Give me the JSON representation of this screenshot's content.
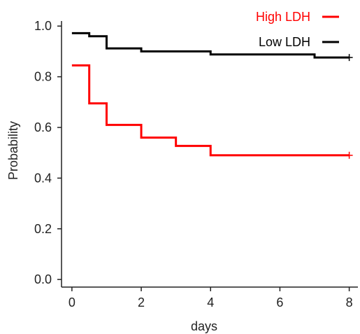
{
  "chart_data": {
    "type": "line",
    "xlabel": "days",
    "ylabel": "Probability",
    "xlim": [
      -0.3,
      8.25
    ],
    "ylim": [
      -0.03,
      1.02
    ],
    "xticks": [
      0,
      2,
      4,
      6,
      8
    ],
    "yticks": [
      0.0,
      0.2,
      0.4,
      0.6,
      0.8,
      1.0
    ],
    "xtick_labels": [
      "0",
      "2",
      "4",
      "6",
      "8"
    ],
    "ytick_labels": [
      "0.0",
      "0.2",
      "0.4",
      "0.6",
      "0.8",
      "1.0"
    ],
    "step": true,
    "grid": false,
    "legend_position": "top-right",
    "series": [
      {
        "name": "High LDH",
        "color": "#ff0000",
        "points": [
          [
            0,
            0.845
          ],
          [
            0.5,
            0.695
          ],
          [
            1,
            0.61
          ],
          [
            2,
            0.56
          ],
          [
            3,
            0.527
          ],
          [
            4,
            0.49
          ],
          [
            8,
            0.49
          ]
        ],
        "censored": [
          [
            8,
            0.49
          ]
        ]
      },
      {
        "name": "Low LDH",
        "color": "#000000",
        "points": [
          [
            0,
            0.972
          ],
          [
            0.5,
            0.96
          ],
          [
            1,
            0.912
          ],
          [
            2,
            0.9
          ],
          [
            4,
            0.888
          ],
          [
            7,
            0.876
          ],
          [
            8,
            0.876
          ]
        ],
        "censored": [
          [
            8,
            0.876
          ]
        ]
      }
    ]
  }
}
